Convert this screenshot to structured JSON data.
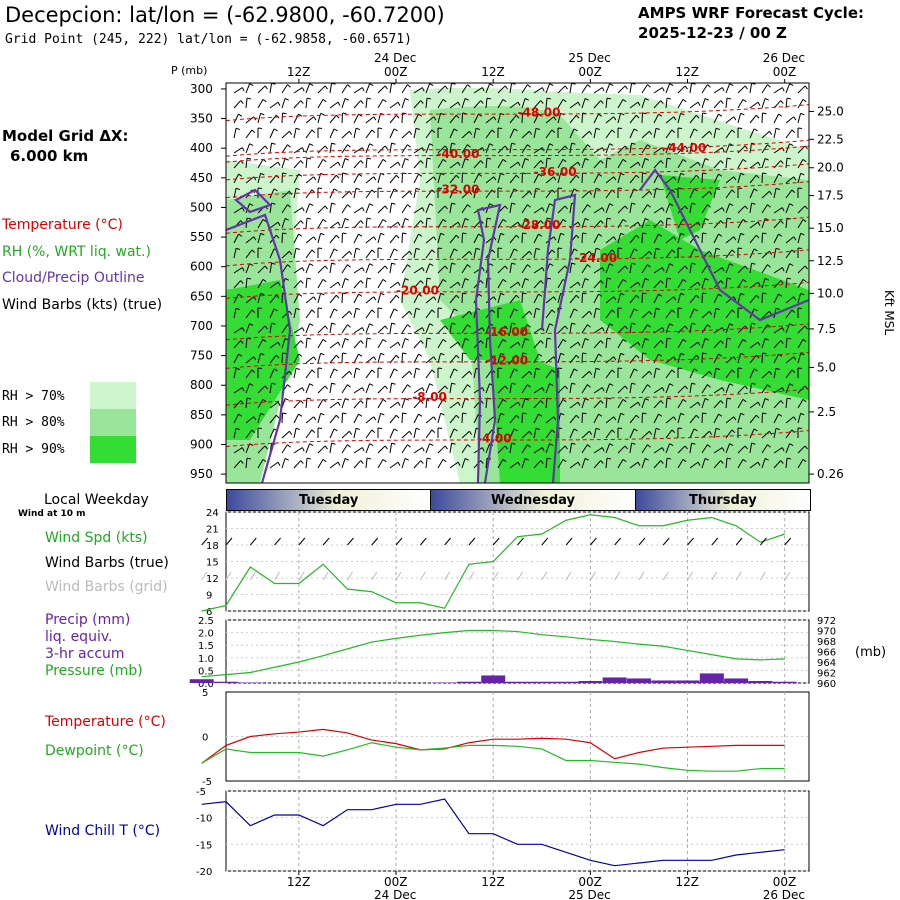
{
  "header": {
    "title": "Decepcion:  lat/lon = (-62.9800, -60.7200)",
    "subtitle": "Grid Point (245, 222) lat/lon = (-62.9858, -60.6571)",
    "cycle_line1": "AMPS WRF Forecast Cycle:",
    "cycle_line2": "2025-12-23 / 00  Z"
  },
  "model_grid": {
    "label": "Model Grid ΔX:",
    "value": "6.000 km"
  },
  "legend": {
    "temperature": "Temperature (°C)",
    "rh": "RH (%, WRT liq. wat.)",
    "cloud": "Cloud/Precip Outline",
    "wind": "Wind Barbs (kts) (true)",
    "rh70": "RH > 70%",
    "rh80": "RH > 80%",
    "rh90": "RH > 90%"
  },
  "colors": {
    "rh70": "#ccf5cc",
    "rh80": "#99e599",
    "rh90": "#33dd33",
    "temperature": "#dd0000",
    "cloud": "#6633aa",
    "wind_spd": "#22bb22",
    "precip": "#6622aa",
    "wind_chill": "#0000aa",
    "day_band": "#3c4a9c"
  },
  "time_axis": {
    "top_dates": [
      "24 Dec",
      "25 Dec",
      "26 Dec"
    ],
    "bottom_dates": [
      "24 Dec",
      "25 Dec",
      "26 Dec"
    ],
    "ticks": [
      "12Z",
      "00Z",
      "12Z",
      "00Z",
      "12Z",
      "00Z"
    ]
  },
  "pressure_axis": {
    "label": "P (mb)",
    "ticks": [
      "300",
      "350",
      "400",
      "450",
      "500",
      "550",
      "600",
      "650",
      "700",
      "750",
      "800",
      "850",
      "900",
      "950"
    ]
  },
  "height_axis": {
    "label": "Kft MSL",
    "ticks": [
      "25.0",
      "22.5",
      "20.0",
      "17.5",
      "15.0",
      "12.5",
      "10.0",
      "7.5",
      "5.0",
      "2.5",
      "0.26"
    ]
  },
  "weekday": {
    "label": "Local Weekday",
    "sublabel": "Wind at 10 m",
    "days": [
      "Tuesday",
      "Wednesday",
      "Thursday"
    ]
  },
  "panels": {
    "wind_spd": "Wind Spd (kts)",
    "wind_true": "Wind Barbs (true)",
    "wind_grid": "Wind Barbs (grid)",
    "precip1": "Precip (mm)",
    "precip2": "liq. equiv.",
    "precip3": "3-hr accum",
    "pressure": "Pressure (mb)",
    "pressure_unit": "(mb)",
    "temp": "Temperature (°C)",
    "dewpoint": "Dewpoint (°C)",
    "windchill": "Wind Chill T (°C)"
  },
  "chart_data": [
    {
      "type": "heatmap",
      "title": "Decepcion:  lat/lon = (-62.9800, -60.7200)",
      "ylabel": "P (mb)",
      "y2label": "Kft MSL",
      "ylim": [
        950,
        300
      ],
      "isotherms": [
        {
          "label": "-48.00",
          "p": 340,
          "time_h": 36
        },
        {
          "label": "-44.00",
          "p": 400,
          "time_h": 54
        },
        {
          "label": "-40.00",
          "p": 410,
          "time_h": 26
        },
        {
          "label": "-36.00",
          "p": 440,
          "time_h": 38
        },
        {
          "label": "-32.00",
          "p": 470,
          "time_h": 26
        },
        {
          "label": "-28.00",
          "p": 530,
          "time_h": 36
        },
        {
          "label": "-24.00",
          "p": 585,
          "time_h": 43
        },
        {
          "label": "-20.00",
          "p": 640,
          "time_h": 21
        },
        {
          "label": "-16.00",
          "p": 710,
          "time_h": 32
        },
        {
          "label": "-12.00",
          "p": 758,
          "time_h": 32
        },
        {
          "label": "-8.00",
          "p": 820,
          "time_h": 23
        },
        {
          "label": "-4.00",
          "p": 890,
          "time_h": 31
        }
      ]
    },
    {
      "type": "line",
      "ylabel": "Wind Spd (kts)",
      "ylim": [
        6,
        24
      ],
      "yticks": [
        6,
        9,
        12,
        15,
        18,
        21,
        24
      ],
      "x_hours": [
        0,
        3,
        6,
        9,
        12,
        15,
        18,
        21,
        24,
        27,
        30,
        33,
        36,
        39,
        42,
        45,
        48,
        51,
        54,
        57,
        60,
        63,
        66,
        69,
        72
      ],
      "series": [
        {
          "values": [
            6,
            7,
            14,
            11,
            11,
            14.5,
            10,
            9.5,
            7.5,
            7.5,
            6.5,
            14.5,
            15,
            19.5,
            20,
            22.5,
            23.5,
            23,
            21.5,
            21.5,
            22.5,
            23,
            21.5,
            18.5,
            20
          ]
        }
      ]
    },
    {
      "type": "bar",
      "ylabel": "Precip (mm)",
      "ylim": [
        0,
        2.5
      ],
      "y2label": "Pressure (mb)",
      "y2lim": [
        960,
        972
      ],
      "x_hours": [
        0,
        3,
        6,
        9,
        12,
        15,
        18,
        21,
        24,
        27,
        30,
        33,
        36,
        39,
        42,
        45,
        48,
        51,
        54,
        57,
        60,
        63,
        66,
        69,
        72
      ],
      "series": [
        {
          "name": "Precip",
          "values": [
            0.15,
            0.05,
            0.02,
            0,
            0,
            0,
            0,
            0,
            0,
            0,
            0.02,
            0.05,
            0.3,
            0.05,
            0.05,
            0.05,
            0.08,
            0.22,
            0.18,
            0.1,
            0.1,
            0.38,
            0.18,
            0.08,
            0.05
          ]
        },
        {
          "name": "Pressure",
          "values": [
            961.2,
            961.6,
            962.0,
            963.0,
            964.0,
            965.2,
            966.5,
            967.8,
            968.5,
            969.1,
            969.6,
            970.0,
            970.0,
            969.8,
            969.2,
            968.8,
            968.3,
            967.9,
            967.4,
            967.0,
            966.2,
            965.4,
            964.6,
            964.4,
            964.6
          ]
        }
      ]
    },
    {
      "type": "line",
      "ylim": [
        -5,
        5
      ],
      "yticks": [
        -5,
        0,
        5
      ],
      "x_hours": [
        0,
        3,
        6,
        9,
        12,
        15,
        18,
        21,
        24,
        27,
        30,
        33,
        36,
        39,
        42,
        45,
        48,
        51,
        54,
        57,
        60,
        63,
        66,
        69,
        72
      ],
      "series": [
        {
          "name": "Temperature (°C)",
          "values": [
            -3.0,
            -1.0,
            0.0,
            0.3,
            0.5,
            0.8,
            0.4,
            -0.4,
            -0.8,
            -1.5,
            -1.4,
            -0.7,
            -0.3,
            -0.3,
            -0.2,
            -0.3,
            -0.7,
            -2.5,
            -1.8,
            -1.3,
            -1.2,
            -1.1,
            -1.0,
            -1.0,
            -1.0
          ]
        },
        {
          "name": "Dewpoint (°C)",
          "values": [
            -3.0,
            -1.4,
            -1.8,
            -1.8,
            -1.8,
            -2.2,
            -1.5,
            -0.7,
            -1.2,
            -1.5,
            -1.3,
            -1.0,
            -1.0,
            -1.1,
            -1.4,
            -2.7,
            -2.7,
            -2.9,
            -3.1,
            -3.5,
            -3.8,
            -3.9,
            -3.9,
            -3.6,
            -3.6
          ]
        }
      ]
    },
    {
      "type": "line",
      "ylim": [
        -20,
        -5
      ],
      "yticks": [
        -20,
        -15,
        -10,
        -5
      ],
      "x_hours": [
        0,
        3,
        6,
        9,
        12,
        15,
        18,
        21,
        24,
        27,
        30,
        33,
        36,
        39,
        42,
        45,
        48,
        51,
        54,
        57,
        60,
        63,
        66,
        69,
        72
      ],
      "series": [
        {
          "name": "Wind Chill T (°C)",
          "values": [
            -7.5,
            -7,
            -11.5,
            -9.5,
            -9.5,
            -11.5,
            -8.5,
            -8.5,
            -7.5,
            -7.5,
            -6.5,
            -13,
            -13,
            -15,
            -15,
            -16.5,
            -18,
            -19,
            -18.5,
            -18,
            -18,
            -18,
            -17,
            -16.5,
            -16
          ]
        }
      ]
    }
  ]
}
